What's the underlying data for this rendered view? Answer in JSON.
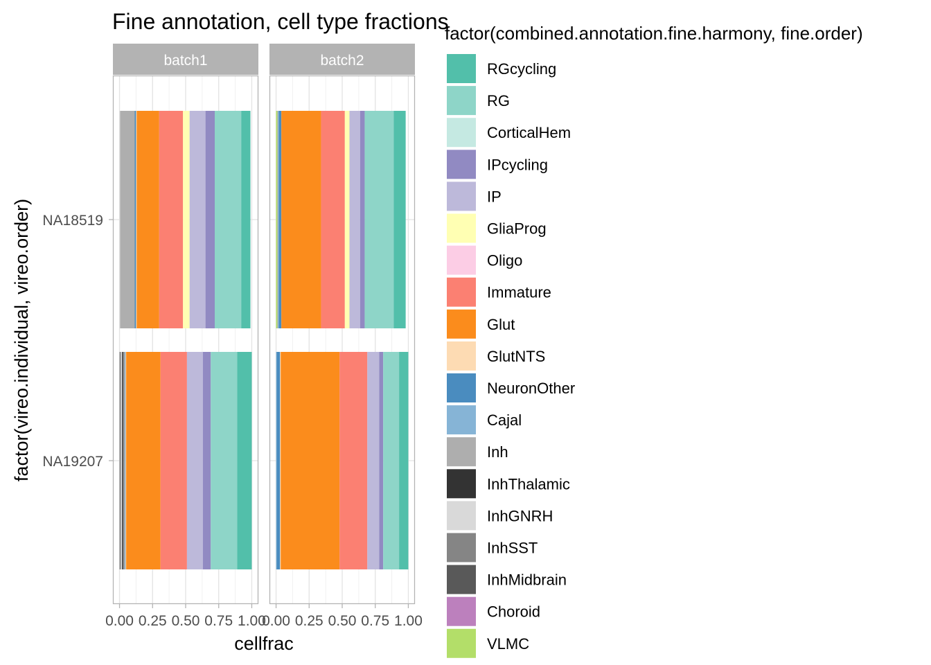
{
  "chart_data": {
    "type": "bar",
    "orientation": "horizontal",
    "stacked": true,
    "title": "Fine annotation, cell type fractions",
    "xlabel": "cellfrac",
    "ylabel": "factor(vireo.individual, vireo.order)",
    "legend_title": "factor(combined.annotation.fine.harmony, fine.order)",
    "legend_position": "right",
    "xlim": [
      -0.05,
      1.05
    ],
    "x_ticks": [
      0,
      0.25,
      0.5,
      0.75,
      1
    ],
    "x_tick_labels": [
      "0.00",
      "0.25",
      "0.50",
      "0.75",
      "1.00"
    ],
    "grid": true,
    "facets": [
      "batch1",
      "batch2"
    ],
    "categories": [
      "NA18519",
      "NA19207"
    ],
    "cell_types": [
      {
        "name": "RGcycling",
        "color": "#52BFAA"
      },
      {
        "name": "RG",
        "color": "#8ED5C8"
      },
      {
        "name": "CorticalHem",
        "color": "#C5E9E2"
      },
      {
        "name": "IPcycling",
        "color": "#918AC2"
      },
      {
        "name": "IP",
        "color": "#BDB9DA"
      },
      {
        "name": "GliaProg",
        "color": "#FFFFB3"
      },
      {
        "name": "Oligo",
        "color": "#FCCDE5"
      },
      {
        "name": "Immature",
        "color": "#FB8072"
      },
      {
        "name": "Glut",
        "color": "#FB8C1C"
      },
      {
        "name": "GlutNTS",
        "color": "#FDDBB3"
      },
      {
        "name": "NeuronOther",
        "color": "#4A8CBF"
      },
      {
        "name": "Cajal",
        "color": "#86B4D6"
      },
      {
        "name": "Inh",
        "color": "#AEAEAE"
      },
      {
        "name": "InhThalamic",
        "color": "#333333"
      },
      {
        "name": "InhGNRH",
        "color": "#D9D9D9"
      },
      {
        "name": "InhSST",
        "color": "#858585"
      },
      {
        "name": "InhMidbrain",
        "color": "#595959"
      },
      {
        "name": "Choroid",
        "color": "#BC80BD"
      },
      {
        "name": "VLMC",
        "color": "#B3DE69"
      }
    ],
    "stack_order_from_zero": [
      "VLMC",
      "Choroid",
      "InhMidbrain",
      "InhSST",
      "InhGNRH",
      "InhThalamic",
      "Inh",
      "Cajal",
      "NeuronOther",
      "GlutNTS",
      "Glut",
      "Immature",
      "Oligo",
      "GliaProg",
      "IP",
      "IPcycling",
      "CorticalHem",
      "RG",
      "RGcycling"
    ],
    "values": {
      "batch1": {
        "NA18519": {
          "Inh": 0.11,
          "InhGNRH": 0.005,
          "NeuronOther": 0.01,
          "GlutNTS": 0.005,
          "Glut": 0.17,
          "Immature": 0.18,
          "GliaProg": 0.05,
          "IP": 0.12,
          "IPcycling": 0.07,
          "RG": 0.2,
          "RGcycling": 0.07
        },
        "NA19207": {
          "InhThalamic": 0.01,
          "InhGNRH": 0.01,
          "InhSST": 0.01,
          "Inh": 0.01,
          "NeuronOther": 0.005,
          "GlutNTS": 0.005,
          "Glut": 0.26,
          "Immature": 0.2,
          "IP": 0.12,
          "IPcycling": 0.06,
          "RG": 0.2,
          "RGcycling": 0.11
        }
      },
      "batch2": {
        "NA18519": {
          "VLMC": 0.01,
          "Cajal": 0.005,
          "Inh": 0.005,
          "NeuronOther": 0.02,
          "Glut": 0.3,
          "Immature": 0.18,
          "GliaProg": 0.035,
          "IP": 0.08,
          "IPcycling": 0.035,
          "RG": 0.22,
          "RGcycling": 0.09
        },
        "NA19207": {
          "Cajal": 0.005,
          "NeuronOther": 0.025,
          "GlutNTS": 0.005,
          "Glut": 0.445,
          "Immature": 0.21,
          "IP": 0.09,
          "IPcycling": 0.03,
          "RG": 0.12,
          "RGcycling": 0.07
        }
      }
    }
  }
}
